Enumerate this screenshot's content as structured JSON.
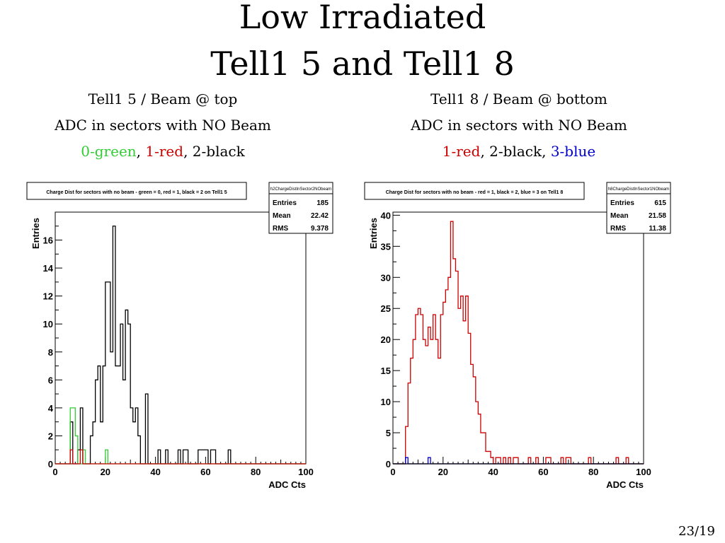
{
  "slide": {
    "title_line1": "Low Irradiated",
    "title_line2": "Tell1 5 and Tell1 8",
    "page_number": "23/19"
  },
  "left_caption": {
    "line1": "Tell1 5 / Beam @ top",
    "line2": "ADC in sectors with NO Beam",
    "legend": [
      {
        "text": "0-green",
        "color": "#33cc33"
      },
      {
        "text": ", ",
        "color": "#000000"
      },
      {
        "text": "1-red",
        "color": "#cc0000"
      },
      {
        "text": ", 2-black",
        "color": "#000000"
      }
    ]
  },
  "right_caption": {
    "line1": "Tell1 8 / Beam @ bottom",
    "line2": "ADC in sectors with NO Beam",
    "legend": [
      {
        "text": "1-red",
        "color": "#cc0000"
      },
      {
        "text": ", 2-black, ",
        "color": "#000000"
      },
      {
        "text": "3-blue",
        "color": "#0000cc"
      }
    ]
  },
  "chart_data": [
    {
      "type": "histogram",
      "title": "Charge Dist for sectors with no beam - green = 0, red = 1, black = 2 on Tell1 5",
      "stats_name": "h2ChargeDistInSector2NObeam",
      "stats": [
        {
          "label": "Entries",
          "value": "185"
        },
        {
          "label": "Mean",
          "value": "22.42"
        },
        {
          "label": "RMS",
          "value": "9.378"
        }
      ],
      "xlabel": "ADC Cts",
      "ylabel": "Entries",
      "xlim": [
        0,
        100
      ],
      "ylim": [
        0,
        18
      ],
      "xticks": [
        0,
        20,
        40,
        60,
        80,
        100
      ],
      "yticks": [
        0,
        2,
        4,
        6,
        8,
        10,
        12,
        14,
        16
      ],
      "bin_width": 1,
      "series": [
        {
          "color": "#000000",
          "values": [
            0,
            0,
            0,
            0,
            0,
            0,
            3,
            0,
            0,
            1,
            4,
            0,
            0,
            0,
            2,
            3,
            6,
            7,
            3,
            7,
            13,
            13,
            8,
            17,
            7,
            7,
            10,
            6,
            11,
            10,
            4,
            3,
            4,
            2,
            0,
            0,
            5,
            0,
            0,
            0,
            0,
            1,
            0,
            0,
            1,
            0,
            0,
            0,
            0,
            1,
            0,
            1,
            1,
            0,
            0,
            0,
            0,
            1,
            1,
            1,
            1,
            0,
            1,
            1,
            0,
            0,
            0,
            0,
            0,
            1,
            0,
            0,
            0,
            0,
            0,
            0,
            0,
            0,
            0,
            0,
            0,
            0,
            0,
            0,
            0,
            0,
            0,
            0,
            0,
            0,
            0,
            0,
            0,
            0,
            0,
            0,
            0,
            0,
            0,
            0
          ]
        },
        {
          "color": "#33cc33",
          "values": [
            0,
            0,
            0,
            0,
            0,
            0,
            4,
            4,
            2,
            0,
            0,
            1,
            0,
            0,
            0,
            0,
            0,
            0,
            0,
            0,
            1,
            0,
            0,
            0,
            0,
            0,
            0,
            0,
            0,
            0,
            0,
            0,
            0,
            0,
            0,
            0,
            0,
            0,
            0,
            0,
            0,
            0,
            0,
            0,
            0,
            0,
            0,
            0,
            0,
            0,
            0,
            0,
            0,
            0,
            0,
            0,
            0,
            0,
            0,
            0,
            0,
            0,
            0,
            0,
            0,
            0,
            0,
            0,
            0,
            0,
            0,
            0,
            0,
            0,
            0,
            0,
            0,
            0,
            0,
            0,
            0,
            0,
            0,
            0,
            0,
            0,
            0,
            0,
            0,
            0,
            0,
            0,
            0,
            0,
            0,
            0,
            0,
            0,
            0,
            0
          ]
        },
        {
          "color": "#cc0000",
          "values": [
            0,
            0,
            0,
            0,
            0,
            0,
            1,
            0,
            0,
            0,
            1,
            0,
            0,
            0,
            0,
            0,
            0,
            0,
            0,
            0,
            0,
            0,
            0,
            0,
            0,
            0,
            0,
            0,
            0,
            0,
            0,
            0,
            0,
            0,
            0,
            0,
            0,
            0,
            0,
            0,
            0,
            0,
            0,
            0,
            0,
            0,
            0,
            0,
            0,
            0,
            0,
            0,
            0,
            0,
            0,
            0,
            0,
            0,
            0,
            0,
            0,
            0,
            0,
            0,
            0,
            0,
            0,
            0,
            0,
            0,
            0,
            0,
            0,
            0,
            0,
            0,
            0,
            0,
            0,
            0,
            0,
            0,
            0,
            0,
            0,
            0,
            0,
            0,
            0,
            0,
            0,
            0,
            0,
            0,
            0,
            0,
            0,
            0,
            0,
            0
          ]
        }
      ]
    },
    {
      "type": "histogram",
      "title": "Charge Dist for sectors with no beam - red = 1, black = 2, blue = 3 on Tell1 8",
      "stats_name": "h8ChargeDistInSector1NObeam",
      "stats": [
        {
          "label": "Entries",
          "value": "615"
        },
        {
          "label": "Mean",
          "value": "21.58"
        },
        {
          "label": "RMS",
          "value": "11.38"
        }
      ],
      "xlabel": "ADC Cts",
      "ylabel": "Entries",
      "xlim": [
        0,
        100
      ],
      "ylim": [
        0,
        40.5
      ],
      "xticks": [
        0,
        20,
        40,
        60,
        80,
        100
      ],
      "yticks": [
        0,
        5,
        10,
        15,
        20,
        25,
        30,
        35,
        40
      ],
      "bin_width": 1,
      "series": [
        {
          "color": "#cc0000",
          "values": [
            0,
            0,
            0,
            0,
            0,
            6,
            13,
            17,
            20,
            24,
            25,
            24,
            20,
            19,
            22,
            20,
            24,
            20,
            17,
            24,
            26,
            28,
            30,
            39,
            33,
            31,
            25,
            27,
            23,
            27,
            21,
            16,
            14,
            10,
            8,
            5,
            5,
            2,
            2,
            1,
            0,
            1,
            1,
            0,
            1,
            0,
            1,
            0,
            1,
            1,
            0,
            0,
            0,
            0,
            1,
            0,
            0,
            1,
            0,
            0,
            0,
            1,
            1,
            0,
            0,
            0,
            0,
            1,
            0,
            1,
            1,
            0,
            0,
            0,
            0,
            0,
            0,
            0,
            1,
            0,
            0,
            0,
            0,
            0,
            0,
            0,
            0,
            0,
            0,
            1,
            0,
            0,
            0,
            1,
            0,
            0,
            0,
            0,
            0,
            0
          ]
        },
        {
          "color": "#0000cc",
          "values": [
            0,
            0,
            0,
            0,
            0,
            1,
            0,
            0,
            0,
            0,
            0,
            0,
            0,
            0,
            1,
            0,
            0,
            0,
            0,
            0,
            0,
            0,
            0,
            0,
            0,
            0,
            0,
            0,
            0,
            0,
            0,
            0,
            0,
            0,
            0,
            0,
            0,
            0,
            0,
            0,
            0,
            0,
            0,
            0,
            0,
            0,
            0,
            0,
            0,
            0,
            0,
            0,
            0,
            0,
            0,
            0,
            0,
            0,
            0,
            0,
            0,
            0,
            0,
            0,
            0,
            0,
            0,
            0,
            0,
            0,
            0,
            0,
            0,
            0,
            0,
            0,
            0,
            0,
            0,
            0,
            0,
            0,
            0,
            0,
            0,
            0,
            0,
            0,
            0,
            0,
            0,
            0,
            0,
            0,
            0,
            0,
            0,
            0,
            0,
            0
          ]
        },
        {
          "color": "#000000",
          "values": [
            0,
            0,
            0,
            0,
            0,
            0,
            0,
            0,
            0,
            0,
            0,
            0,
            0,
            0,
            0,
            0,
            0,
            0,
            0,
            0,
            0,
            0,
            0,
            0,
            0,
            0,
            0,
            0,
            0,
            0,
            0,
            0,
            0,
            0,
            0,
            0,
            0,
            0,
            0,
            0,
            0,
            0,
            0,
            0,
            0,
            0,
            0,
            0,
            0,
            0,
            0,
            0,
            0,
            0,
            0,
            0,
            0,
            0,
            0,
            0,
            0,
            0,
            0,
            0,
            0,
            0,
            0,
            0,
            0,
            0,
            0,
            0,
            0,
            0,
            0,
            0,
            0,
            0,
            0,
            0,
            0,
            0,
            0,
            0,
            0,
            0,
            0,
            0,
            0,
            0,
            0,
            0,
            0,
            0,
            0,
            0,
            0,
            0,
            0,
            0
          ]
        }
      ]
    }
  ]
}
